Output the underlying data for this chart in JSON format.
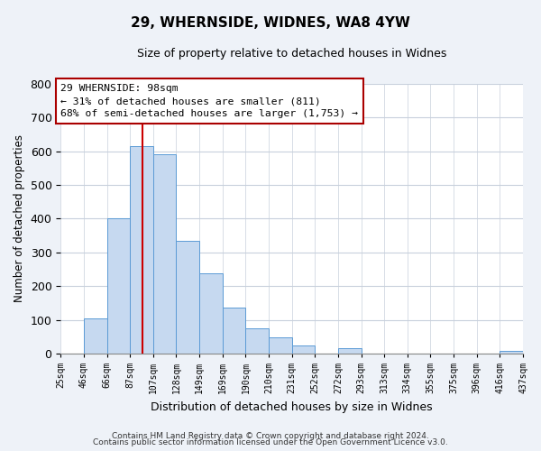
{
  "title": "29, WHERNSIDE, WIDNES, WA8 4YW",
  "subtitle": "Size of property relative to detached houses in Widnes",
  "xlabel": "Distribution of detached houses by size in Widnes",
  "ylabel": "Number of detached properties",
  "footer_line1": "Contains HM Land Registry data © Crown copyright and database right 2024.",
  "footer_line2": "Contains public sector information licensed under the Open Government Licence v3.0.",
  "bin_labels": [
    "25sqm",
    "46sqm",
    "66sqm",
    "87sqm",
    "107sqm",
    "128sqm",
    "149sqm",
    "169sqm",
    "190sqm",
    "210sqm",
    "231sqm",
    "252sqm",
    "272sqm",
    "293sqm",
    "313sqm",
    "334sqm",
    "355sqm",
    "375sqm",
    "396sqm",
    "416sqm",
    "437sqm"
  ],
  "bar_values": [
    0,
    105,
    400,
    615,
    590,
    335,
    237,
    135,
    75,
    49,
    25,
    0,
    16,
    0,
    0,
    0,
    0,
    0,
    0,
    8,
    0
  ],
  "bar_color": "#c6d9f0",
  "bar_edge_color": "#5b9bd5",
  "ylim": [
    0,
    800
  ],
  "yticks": [
    0,
    100,
    200,
    300,
    400,
    500,
    600,
    700,
    800
  ],
  "property_line_label": "29 WHERNSIDE: 98sqm",
  "annotation_line1": "← 31% of detached houses are smaller (811)",
  "annotation_line2": "68% of semi-detached houses are larger (1,753) →",
  "background_color": "#eef2f8",
  "plot_bg_color": "#ffffff",
  "grid_color": "#c8d0dc"
}
